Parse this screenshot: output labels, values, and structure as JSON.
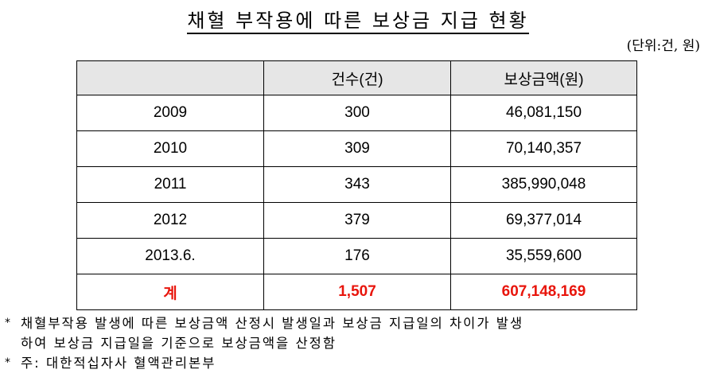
{
  "title": "채혈 부작용에 따른 보상금 지급 현황",
  "unit": "(단위:건, 원)",
  "table": {
    "headers": [
      "",
      "건수(건)",
      "보상금액(원)"
    ],
    "rows": [
      [
        "2009",
        "300",
        "46,081,150"
      ],
      [
        "2010",
        "309",
        "70,140,357"
      ],
      [
        "2011",
        "343",
        "385,990,048"
      ],
      [
        "2012",
        "379",
        "69,377,014"
      ],
      [
        "2013.6.",
        "176",
        "35,559,600"
      ]
    ],
    "total": [
      "계",
      "1,507",
      "607,148,169"
    ]
  },
  "notes": {
    "bullet": "*",
    "note1_line1": "채혈부작용 발생에 따른 보상금액 산정시 발생일과 보상금 지급일의 차이가 발생",
    "note1_line2": "하여 보상금 지급일을 기준으로 보상금액을 산정함",
    "note2": "주: 대한적십자사 혈액관리본부"
  },
  "colors": {
    "total_text": "#e8150c",
    "header_bg": "#e6e6e6"
  }
}
